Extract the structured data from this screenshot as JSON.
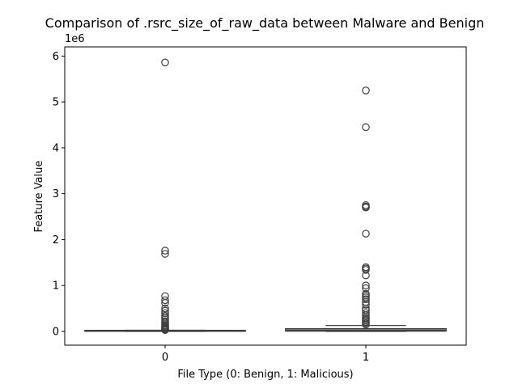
{
  "chart_data": {
    "type": "box",
    "title": "Comparison of .rsrc_size_of_raw_data between Malware and Benign",
    "xlabel": "File Type (0: Benign, 1: Malicious)",
    "ylabel": "Feature Value",
    "y_offset_label": "1e6",
    "y_scale": 1000000,
    "ylim": [
      -300000,
      6200000
    ],
    "yticks": [
      0,
      1,
      2,
      3,
      4,
      5,
      6
    ],
    "grid": false,
    "categories": [
      "0",
      "1"
    ],
    "boxes": [
      {
        "category": "0",
        "color": "#1f77b4",
        "q1": 2000,
        "median": 7000,
        "q3": 12000,
        "whisker_low": 0,
        "whisker_high": 25000,
        "outliers": [
          5860000,
          1760000,
          1690000,
          770000,
          680000,
          620000,
          500000,
          450000,
          400000,
          340000,
          300000,
          260000,
          220000,
          190000,
          160000,
          130000,
          110000,
          90000,
          75000,
          60000,
          48000,
          38000,
          30000
        ]
      },
      {
        "category": "1",
        "color": "#ff7f0e",
        "q1": 5000,
        "median": 25000,
        "q3": 60000,
        "whisker_low": 0,
        "whisker_high": 130000,
        "outliers": [
          5250000,
          4450000,
          2750000,
          2720000,
          2700000,
          2130000,
          1400000,
          1370000,
          1340000,
          1220000,
          1000000,
          940000,
          820000,
          780000,
          740000,
          700000,
          640000,
          580000,
          500000,
          460000,
          400000,
          350000,
          300000,
          270000,
          240000,
          210000,
          180000,
          150000
        ]
      }
    ]
  }
}
